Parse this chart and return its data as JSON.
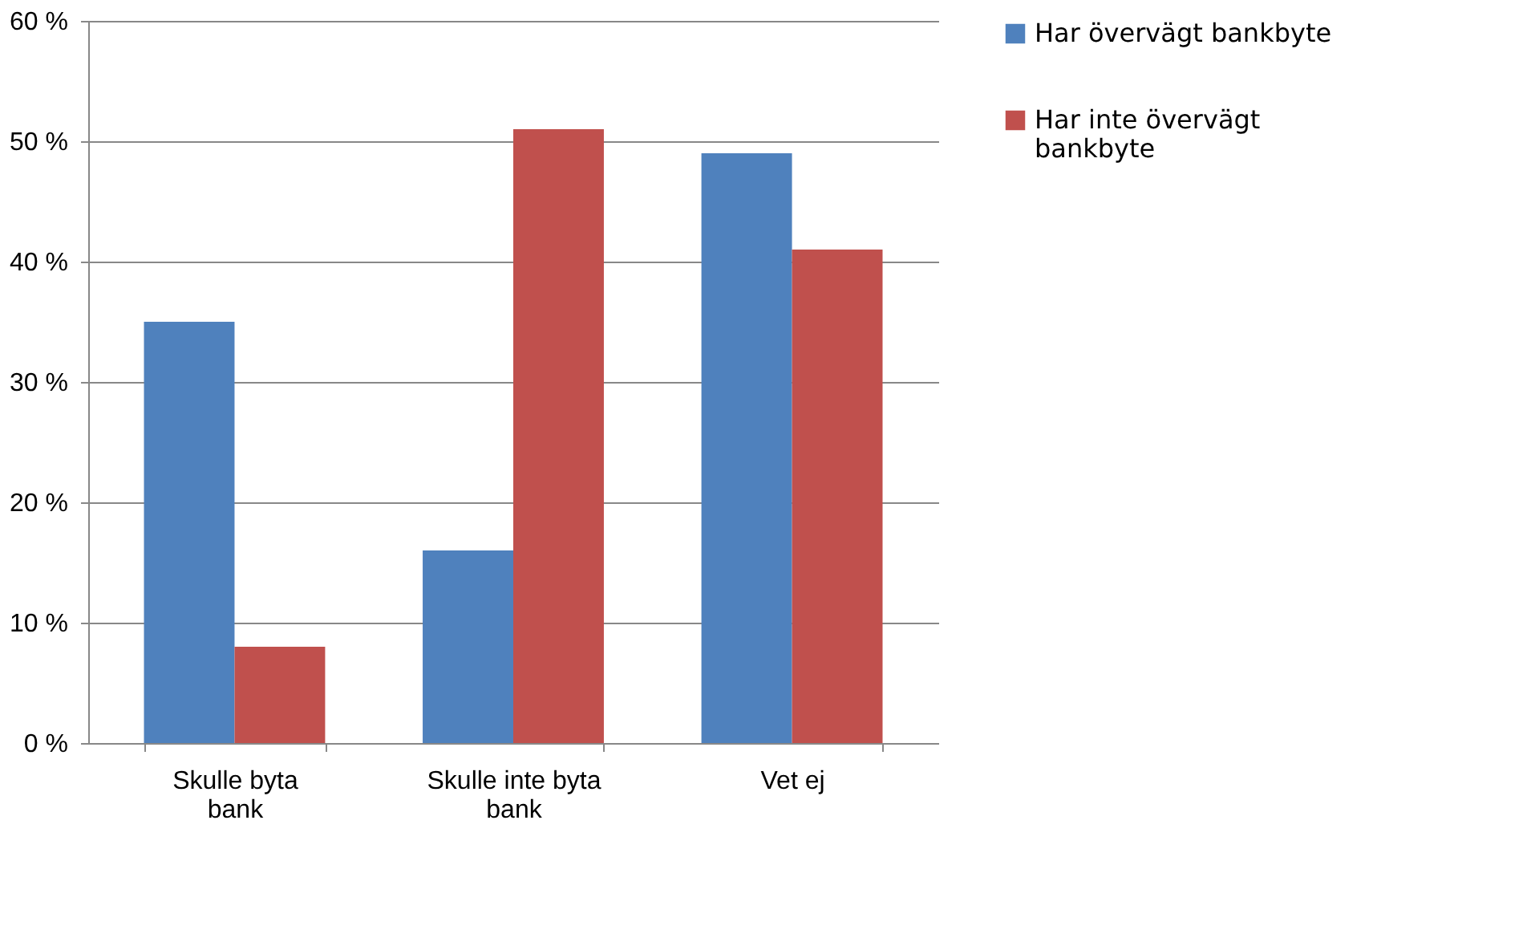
{
  "chart_data": {
    "type": "bar",
    "categories": [
      "Skulle byta bank",
      "Skulle inte byta bank",
      "Vet ej"
    ],
    "series": [
      {
        "name": "Har övervägt bankbyte",
        "color": "#4f81bd",
        "values": [
          35,
          16,
          49
        ]
      },
      {
        "name": "Har inte övervägt bankbyte",
        "color": "#c0504d",
        "values": [
          8,
          51,
          41
        ]
      }
    ],
    "ylim": [
      0,
      60
    ],
    "yticks": [
      {
        "value": 0,
        "label": "0 %"
      },
      {
        "value": 10,
        "label": "10 %"
      },
      {
        "value": 20,
        "label": "20 %"
      },
      {
        "value": 30,
        "label": "30 %"
      },
      {
        "value": 40,
        "label": "40 %"
      },
      {
        "value": 50,
        "label": "50 %"
      },
      {
        "value": 60,
        "label": "60 %"
      }
    ],
    "grid": "y",
    "legend": "right"
  }
}
